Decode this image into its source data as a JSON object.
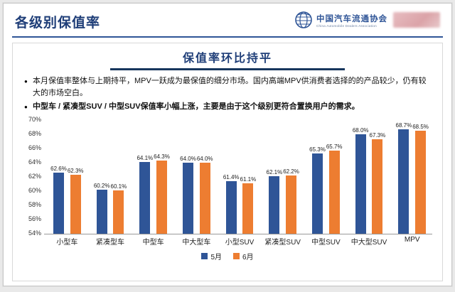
{
  "header": {
    "title": "各级别保值率",
    "logo": {
      "org_cn": "中国汽车流通协会",
      "org_en": "China Automobile Dealers Association"
    }
  },
  "content": {
    "title": "保值率环比持平",
    "bullets": [
      "本月保值率整体与上期持平，MPV一跃成为最保值的细分市场。国内高端MPV供消费者选择的的产品较少，仍有较大的市场空白。",
      "中型车 / 紧凑型SUV / 中型SUV保值率小幅上涨，主要是由于这个级别更符合置换用户的需求。"
    ]
  },
  "chart_data": {
    "type": "bar",
    "title": "保值率环比持平",
    "categories": [
      "小型车",
      "紧凑型车",
      "中型车",
      "中大型车",
      "小型SUV",
      "紧凑型SUV",
      "中型SUV",
      "中大型SUV",
      "MPV"
    ],
    "series": [
      {
        "name": "5月",
        "color": "#2f5597",
        "values": [
          62.6,
          60.2,
          64.1,
          64.0,
          61.4,
          62.1,
          65.3,
          68.0,
          68.7
        ]
      },
      {
        "name": "6月",
        "color": "#ed7d31",
        "values": [
          62.3,
          60.1,
          64.3,
          64.0,
          61.1,
          62.2,
          65.7,
          67.3,
          68.5
        ]
      }
    ],
    "xlabel": "",
    "ylabel": "",
    "ylim": [
      54,
      70
    ],
    "ytick_step": 2,
    "ytick_suffix": "%",
    "value_suffix": "%",
    "grid": false,
    "legend_position": "bottom"
  }
}
